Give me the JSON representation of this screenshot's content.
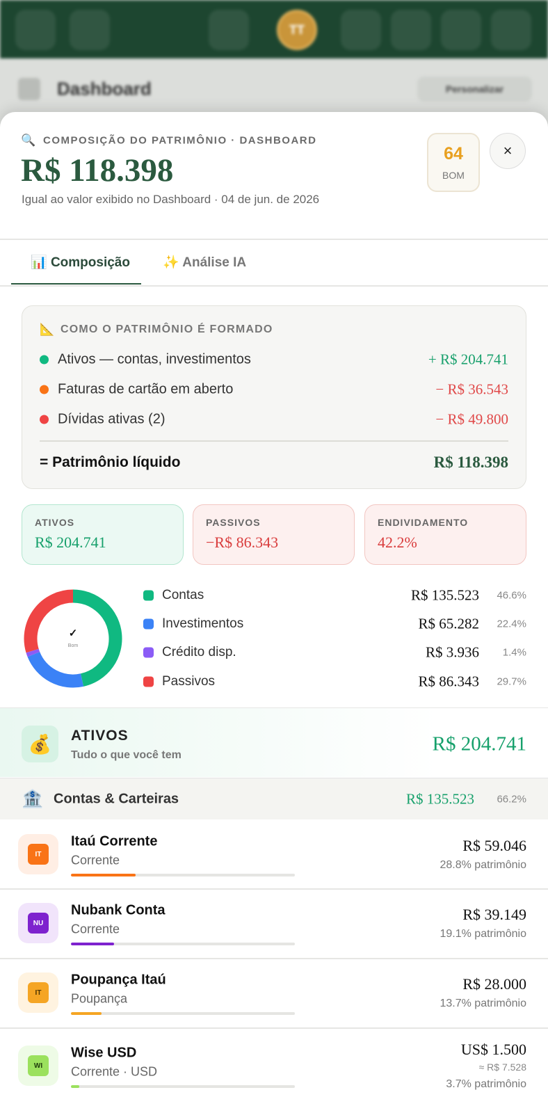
{
  "background": {
    "avatar": "TT",
    "title": "Dashboard",
    "button": "Personalizar"
  },
  "header": {
    "icon": "🔍",
    "eyebrow": "COMPOSIÇÃO DO PATRIMÔNIO · DASHBOARD",
    "total": "R$ 118.398",
    "subtitle": "Igual ao valor exibido no Dashboard · 04 de jun. de 2026",
    "score": 64,
    "score_label": "BOM",
    "close": "×"
  },
  "tabs": [
    {
      "icon": "📊",
      "label": "Composição",
      "active": true
    },
    {
      "icon": "✨",
      "label": "Análise IA",
      "active": false
    }
  ],
  "formation": {
    "icon": "📐",
    "title": "COMO O PATRIMÔNIO É FORMADO",
    "rows": [
      {
        "label": "Ativos — contas, investimentos",
        "value": "+ R$ 204.741",
        "color": "#10b981"
      },
      {
        "label": "Faturas de cartão em aberto",
        "value": "− R$ 36.543",
        "color": "#f97316"
      },
      {
        "label": "Dívidas ativas (2)",
        "value": "− R$ 49.800",
        "color": "#ef4444"
      }
    ],
    "total_label": "= Patrimônio líquido",
    "total_value": "R$ 118.398"
  },
  "cards": [
    {
      "label": "ATIVOS",
      "value": "R$ 204.741"
    },
    {
      "label": "PASSIVOS",
      "value": "−R$ 86.343"
    },
    {
      "label": "ENDIVIDAMENTO",
      "value": "42.2%"
    }
  ],
  "donut": {
    "center_icon": "✓",
    "center_label": "Bom",
    "items": [
      {
        "label": "Contas",
        "amount": "R$ 135.523",
        "share": 46.6,
        "share_label": "46.6%",
        "color": "#10b981"
      },
      {
        "label": "Investimentos",
        "amount": "R$ 65.282",
        "share": 22.4,
        "share_label": "22.4%",
        "color": "#3b82f6"
      },
      {
        "label": "Crédito disp.",
        "amount": "R$ 3.936",
        "share": 1.4,
        "share_label": "1.4%",
        "color": "#8b5cf6"
      },
      {
        "label": "Passivos",
        "amount": "R$ 86.343",
        "share": 29.7,
        "share_label": "29.7%",
        "color": "#ef4444"
      }
    ]
  },
  "assets": {
    "icon": "💰",
    "title": "ATIVOS",
    "subtitle": "Tudo o que você tem",
    "total": "R$ 204.741"
  },
  "group": {
    "icon": "🏦",
    "title": "Contas & Carteiras",
    "total": "R$ 135.523",
    "share": "66.2%"
  },
  "accounts": [
    {
      "badge": "IT",
      "name": "Itaú Corrente",
      "type": "Corrente",
      "amount": "R$ 59.046",
      "share": 28.8,
      "share_label": "28.8% patrimônio",
      "color": "#f97316"
    },
    {
      "badge": "NU",
      "name": "Nubank Conta",
      "type": "Corrente",
      "amount": "R$ 39.149",
      "share": 19.1,
      "share_label": "19.1% patrimônio",
      "color": "#7e22ce"
    },
    {
      "badge": "IT",
      "name": "Poupança Itaú",
      "type": "Poupança",
      "amount": "R$ 28.000",
      "share": 13.7,
      "share_label": "13.7% patrimônio",
      "color": "#f5a524"
    },
    {
      "badge": "WI",
      "name": "Wise USD",
      "type": "Corrente · USD",
      "amount": "US$ 1.500",
      "converted": "≈ R$ 7.528",
      "share": 3.7,
      "share_label": "3.7% patrimônio",
      "color": "#9be15d"
    }
  ]
}
